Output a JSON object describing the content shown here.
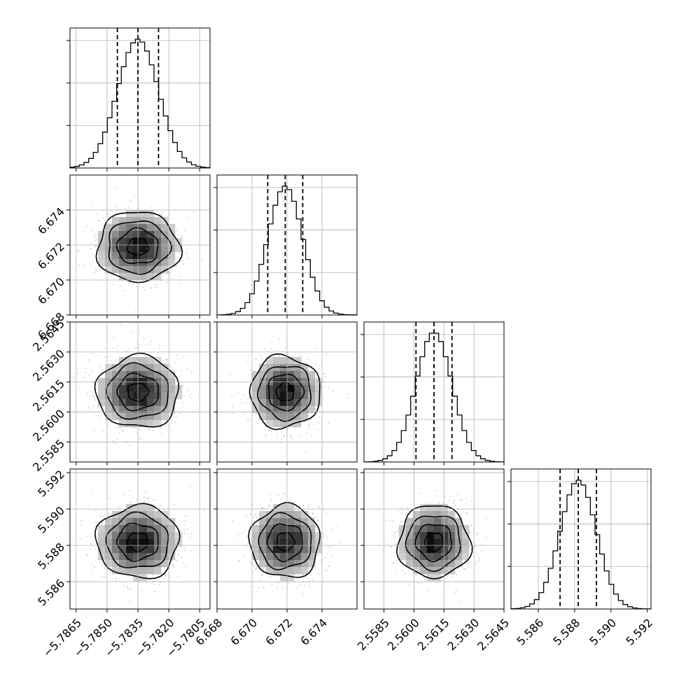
{
  "chart_data": {
    "type": "corner",
    "parameters": [
      {
        "mean": -5.7835,
        "sd": 0.001,
        "range": [
          -5.7868,
          -5.78
        ],
        "quantiles": [
          -5.7845,
          -5.7835,
          -5.7825
        ],
        "ticks": [
          -5.7865,
          -5.785,
          -5.7835,
          -5.782,
          -5.7805
        ],
        "tick_labels": [
          "−5.7865",
          "−5.7850",
          "−5.7835",
          "−5.7820",
          "−5.7805"
        ]
      },
      {
        "mean": 6.6719,
        "sd": 0.001,
        "range": [
          6.668,
          6.676
        ],
        "quantiles": [
          6.6709,
          6.6719,
          6.6729
        ],
        "ticks": [
          6.668,
          6.67,
          6.672,
          6.674
        ],
        "tick_labels": [
          "6.668",
          "6.670",
          "6.672",
          "6.674"
        ]
      },
      {
        "mean": 2.561,
        "sd": 0.0009,
        "range": [
          2.5575,
          2.5645
        ],
        "quantiles": [
          2.5601,
          2.561,
          2.5619
        ],
        "ticks": [
          2.5585,
          2.56,
          2.5615,
          2.563,
          2.5645
        ],
        "tick_labels": [
          "2.5585",
          "2.5600",
          "2.5615",
          "2.5630",
          "2.5645"
        ]
      },
      {
        "mean": 5.5882,
        "sd": 0.001,
        "range": [
          5.5845,
          5.5922
        ],
        "quantiles": [
          5.5872,
          5.5882,
          5.5892
        ],
        "ticks": [
          5.586,
          5.588,
          5.59,
          5.592
        ],
        "tick_labels": [
          "5.586",
          "5.588",
          "5.590",
          "5.592"
        ]
      }
    ],
    "histogram_bins": 30,
    "contour_levels_sigma": [
      0.5,
      1.0,
      1.5,
      2.0
    ],
    "grid": true,
    "title": "",
    "xlabel": "",
    "ylabel": "",
    "colors": {
      "line": "#000000",
      "grid": "#b0b0b0",
      "scatter": "#8c8c8c",
      "density_low": "#f2f2f2",
      "density_high": "#000000"
    }
  }
}
